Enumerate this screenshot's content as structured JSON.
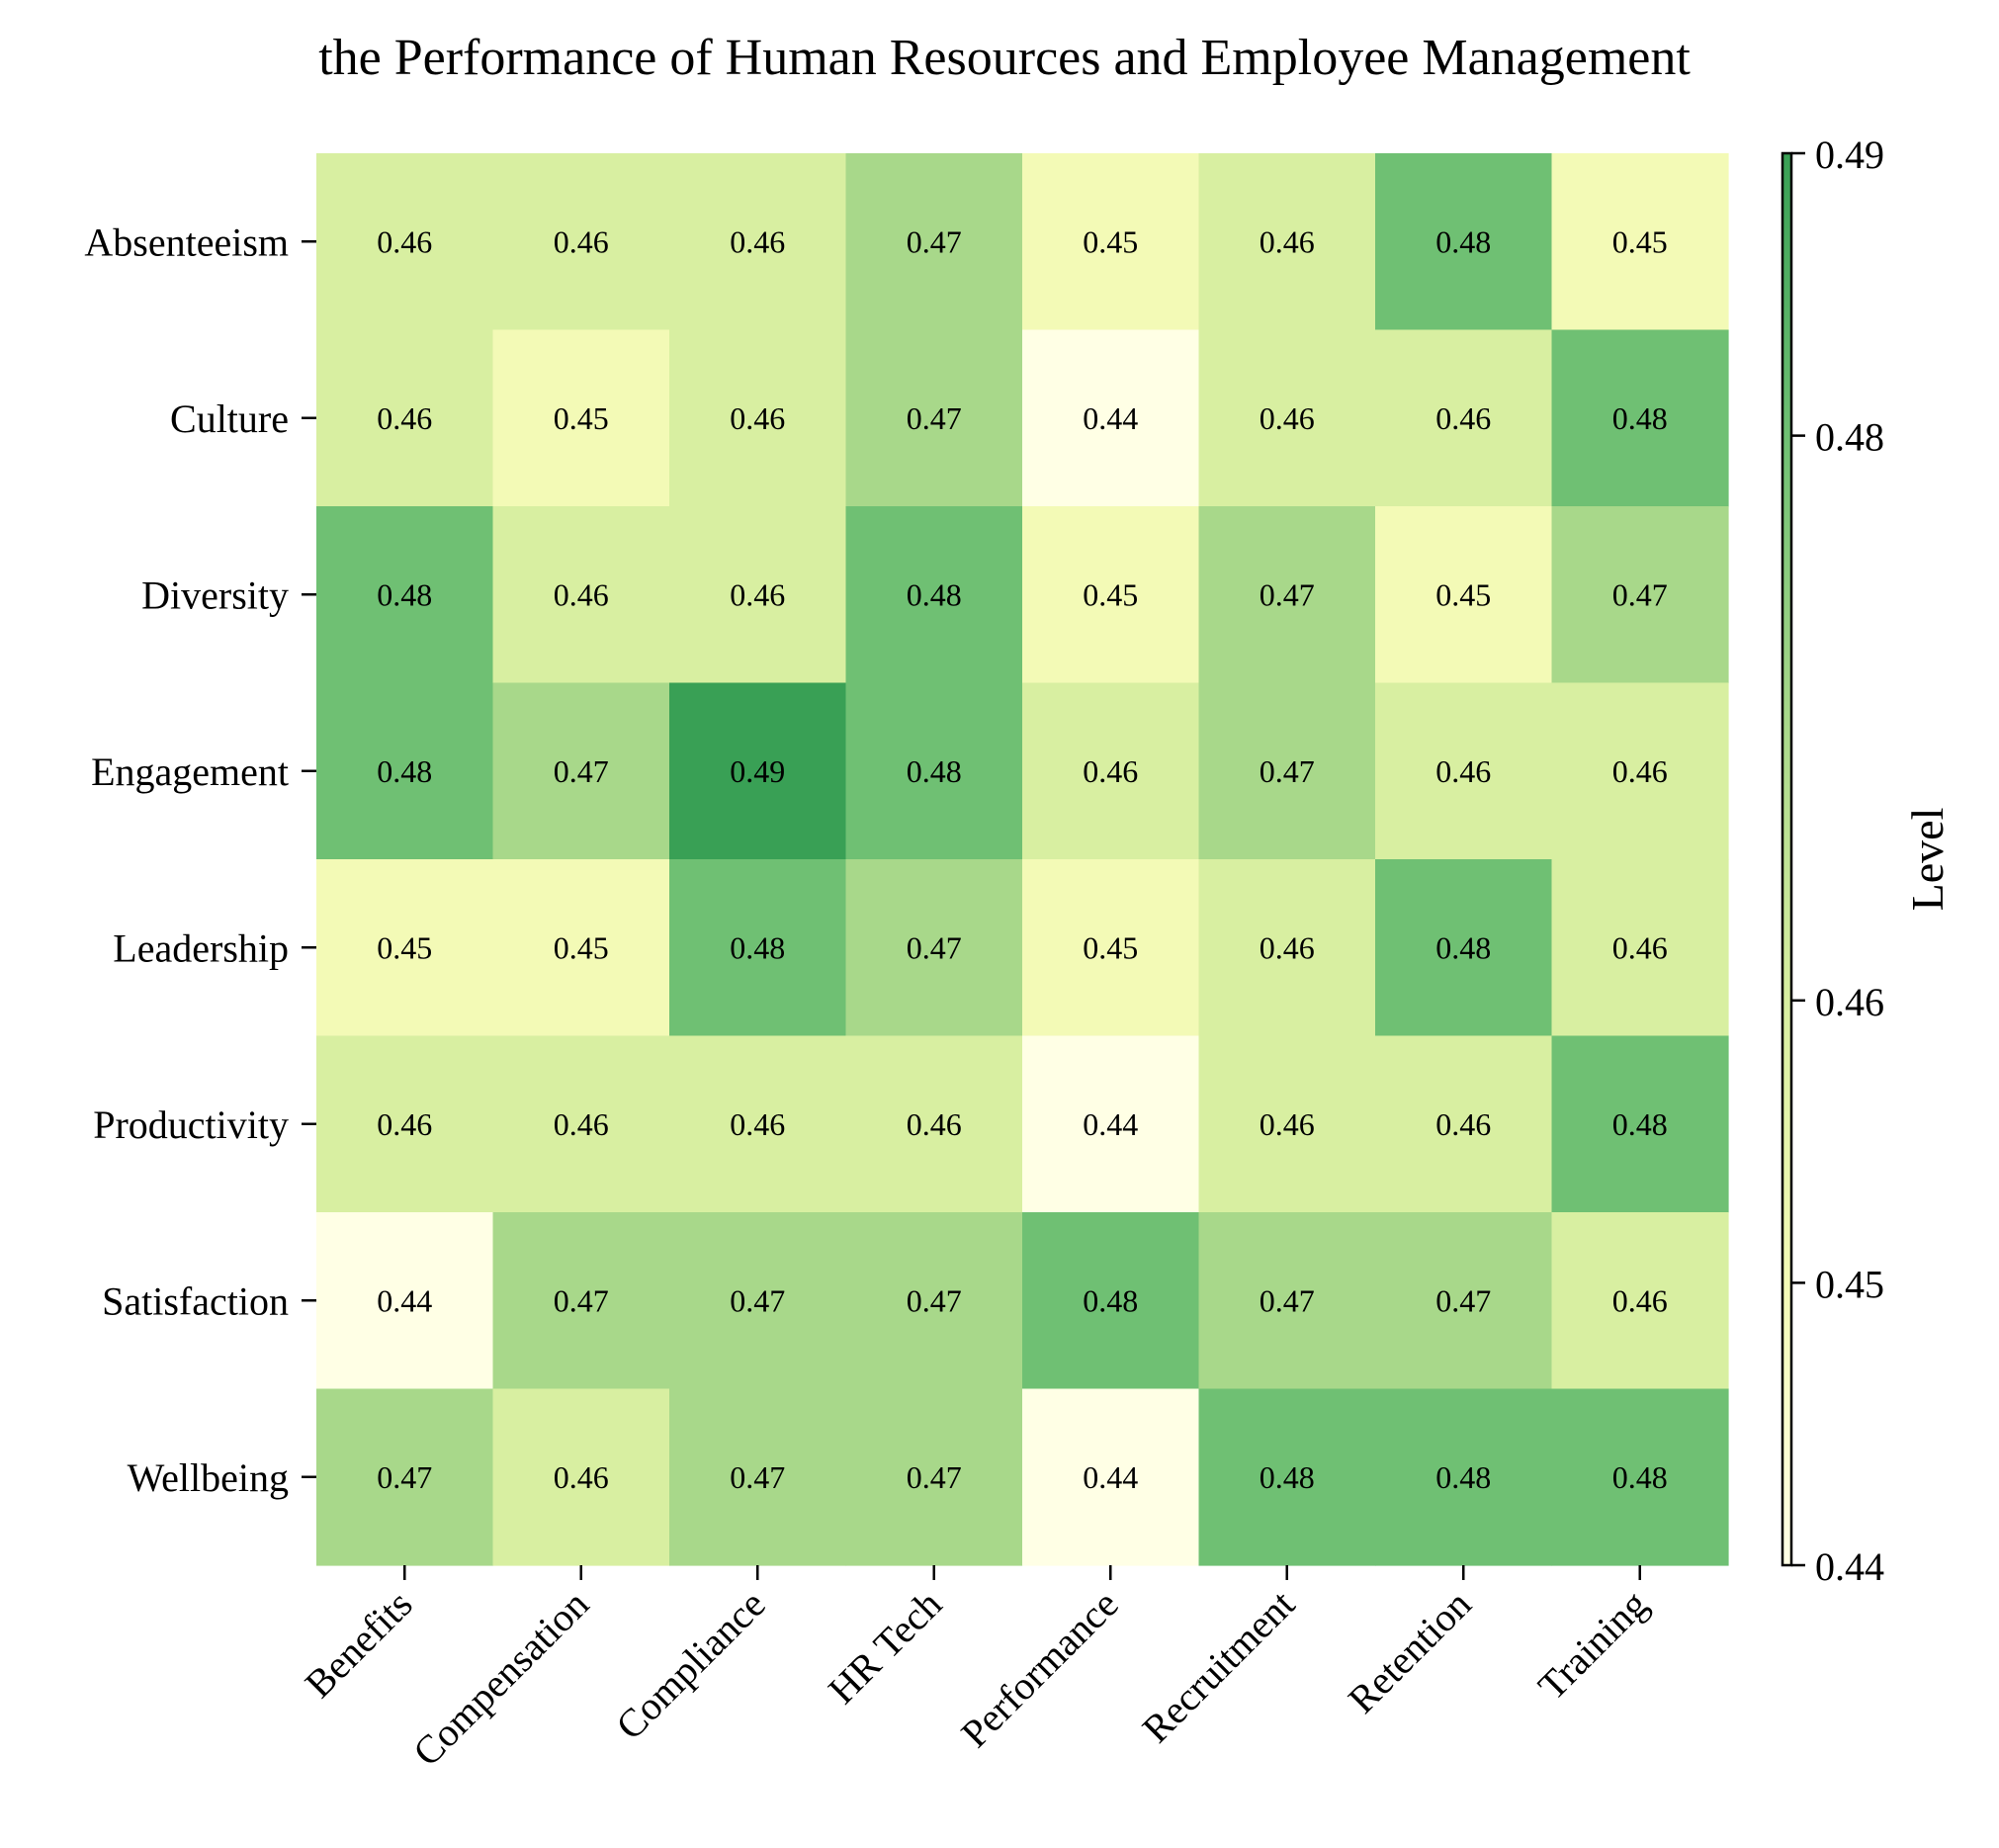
{
  "chart_data": {
    "type": "heatmap",
    "title": "the Performance of Human Resources and Employee Management",
    "x_categories": [
      "Benefits",
      "Compensation",
      "Compliance",
      "HR Tech",
      "Performance",
      "Recruitment",
      "Retention",
      "Training"
    ],
    "y_categories": [
      "Absenteeism",
      "Culture",
      "Diversity",
      "Engagement",
      "Leadership",
      "Productivity",
      "Satisfaction",
      "Wellbeing"
    ],
    "values": [
      [
        0.46,
        0.46,
        0.46,
        0.47,
        0.45,
        0.46,
        0.48,
        0.45
      ],
      [
        0.46,
        0.45,
        0.46,
        0.47,
        0.44,
        0.46,
        0.46,
        0.48
      ],
      [
        0.48,
        0.46,
        0.46,
        0.48,
        0.45,
        0.47,
        0.45,
        0.47
      ],
      [
        0.48,
        0.47,
        0.49,
        0.48,
        0.46,
        0.47,
        0.46,
        0.46
      ],
      [
        0.45,
        0.45,
        0.48,
        0.47,
        0.45,
        0.46,
        0.48,
        0.46
      ],
      [
        0.46,
        0.46,
        0.46,
        0.46,
        0.44,
        0.46,
        0.46,
        0.48
      ],
      [
        0.44,
        0.47,
        0.47,
        0.47,
        0.48,
        0.47,
        0.47,
        0.46
      ],
      [
        0.47,
        0.46,
        0.47,
        0.47,
        0.44,
        0.48,
        0.48,
        0.48
      ]
    ],
    "value_range": [
      0.44,
      0.49
    ],
    "colorbar": {
      "label": "Level",
      "ticks": [
        0.44,
        0.45,
        0.46,
        0.48,
        0.49
      ],
      "tick_labels": [
        "0.44",
        "0.45",
        "0.46",
        "0.48",
        "0.49"
      ]
    },
    "colormap": {
      "0.44": "#ffffe5",
      "0.45": "#f3fab6",
      "0.46": "#d8efa1",
      "0.47": "#a8d88a",
      "0.48": "#6fc073",
      "0.49": "#39a055"
    },
    "grid": false,
    "cell_labels": true
  }
}
